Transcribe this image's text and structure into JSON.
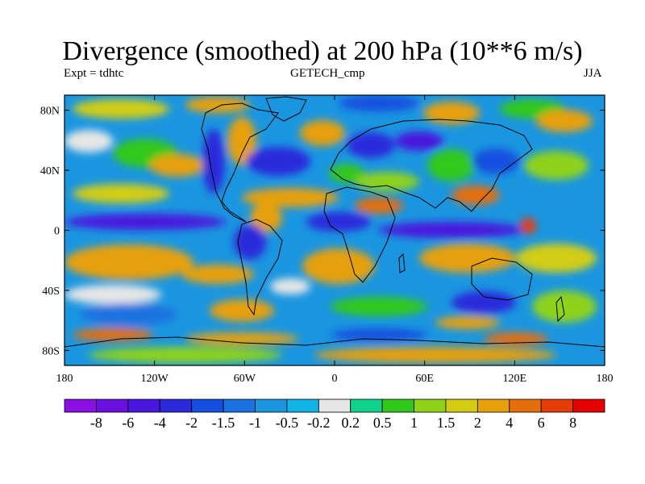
{
  "title": "Divergence (smoothed) at 200 hPa (10**6 m/s)",
  "left_subtitle": "Expt = tdhtc",
  "center_subtitle": "GETECH_cmp",
  "right_subtitle": "JJA",
  "map": {
    "lon_range": [
      -180,
      180
    ],
    "lat_range": [
      -90,
      90
    ],
    "lat_ticks": [
      {
        "value": 80,
        "label": "80N"
      },
      {
        "value": 40,
        "label": "40N"
      },
      {
        "value": 0,
        "label": "0"
      },
      {
        "value": -40,
        "label": "40S"
      },
      {
        "value": -80,
        "label": "80S"
      }
    ],
    "lon_ticks": [
      {
        "value": -180,
        "label": "180"
      },
      {
        "value": -120,
        "label": "120W"
      },
      {
        "value": -60,
        "label": "60W"
      },
      {
        "value": 0,
        "label": "0"
      },
      {
        "value": 60,
        "label": "60E"
      },
      {
        "value": 120,
        "label": "120E"
      },
      {
        "value": 180,
        "label": "180"
      }
    ]
  },
  "colorbar": {
    "levels": [
      "-8",
      "-6",
      "-4",
      "-2",
      "-1.5",
      "-1",
      "-0.5",
      "-0.2",
      "0.2",
      "0.5",
      "1",
      "1.5",
      "2",
      "4",
      "6",
      "8"
    ],
    "colors": [
      "#8a0fe0",
      "#6a0fe0",
      "#4a16dd",
      "#2a2adb",
      "#1450e0",
      "#1a72e0",
      "#1a96e0",
      "#10b4e6",
      "#e6e6e6",
      "#10d28c",
      "#30c81a",
      "#8ed21a",
      "#d2cd14",
      "#e6a00a",
      "#e66e0a",
      "#e63c0a",
      "#e60000"
    ]
  }
}
